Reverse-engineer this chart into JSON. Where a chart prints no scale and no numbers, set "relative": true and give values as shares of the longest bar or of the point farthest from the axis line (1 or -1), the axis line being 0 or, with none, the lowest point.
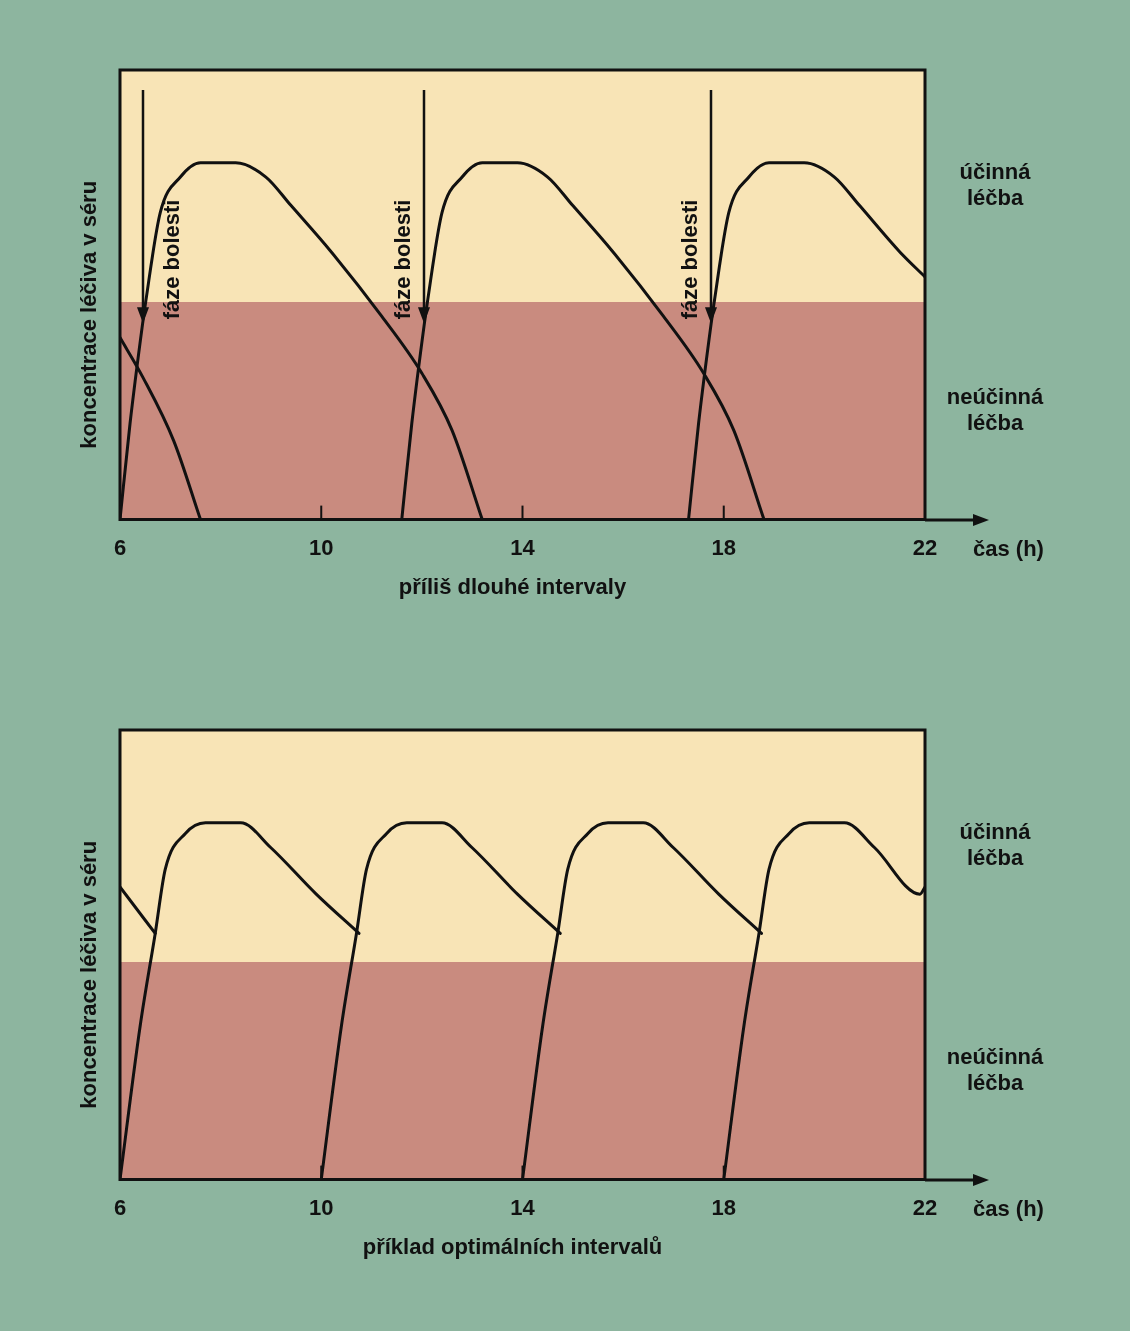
{
  "chart_data": [
    {
      "type": "line",
      "relative": true,
      "title": "příliš dlouhé intervaly",
      "xlabel": "čas (h)",
      "ylabel": "koncentrace léčiva v séru",
      "xlim": [
        6,
        22
      ],
      "xticks": [
        6,
        10,
        14,
        18,
        22
      ],
      "series": [
        {
          "color": "#111111",
          "x": [
            6,
            6.45,
            7.07,
            7.6
          ],
          "values": [
            0.51,
            0.4,
            0.22,
            0
          ]
        },
        {
          "color": "#111111",
          "x": [
            6,
            6.2,
            6.45,
            6.5,
            6.8,
            7.2,
            7.6,
            8.3,
            8.9,
            9.4,
            10.2,
            11.2,
            12,
            12.6,
            13.2
          ],
          "values": [
            0,
            0.27,
            0.55,
            0.6,
            0.86,
            0.96,
            1,
            1,
            0.96,
            0.88,
            0.75,
            0.57,
            0.41,
            0.25,
            0
          ]
        },
        {
          "color": "#111111",
          "x": [
            11.6,
            11.8,
            12.05,
            12.1,
            12.4,
            12.8,
            13.2,
            13.9,
            14.5,
            15,
            15.8,
            16.8,
            17.6,
            18.2,
            18.8
          ],
          "values": [
            0,
            0.27,
            0.55,
            0.6,
            0.86,
            0.96,
            1,
            1,
            0.96,
            0.88,
            0.75,
            0.57,
            0.41,
            0.25,
            0
          ]
        },
        {
          "color": "#111111",
          "x": [
            17.3,
            17.5,
            17.75,
            17.8,
            18.1,
            18.5,
            18.9,
            19.6,
            20.2,
            20.7,
            21.5,
            22
          ],
          "values": [
            0,
            0.27,
            0.55,
            0.6,
            0.86,
            0.96,
            1,
            1,
            0.96,
            0.88,
            0.75,
            0.68
          ]
        }
      ],
      "bands": [
        {
          "axis": "y",
          "from": 0,
          "to": 0.61,
          "label": "neúčinná léčba",
          "color": "#c98b7f"
        },
        {
          "axis": "y",
          "from": 0.61,
          "to": 1.26,
          "label": "účinná léčba",
          "color": "#f8e4b6"
        }
      ],
      "annotations": [
        {
          "text": "fáze bolesti",
          "x": 6.45,
          "y": 0.55
        },
        {
          "text": "fáze bolesti",
          "x": 12.05,
          "y": 0.55
        },
        {
          "text": "fáze bolesti",
          "x": 17.75,
          "y": 0.55
        }
      ]
    },
    {
      "type": "line",
      "relative": true,
      "title": "příklad optimálních intervalů",
      "xlabel": "čas (h)",
      "ylabel": "koncentrace léčiva v séru",
      "xlim": [
        6,
        22
      ],
      "xticks": [
        6,
        10,
        14,
        18,
        22
      ],
      "series": [
        {
          "color": "#111111",
          "x": [
            6,
            6.7
          ],
          "values": [
            0.82,
            0.69
          ]
        },
        {
          "color": "#111111",
          "x": [
            6,
            6.4,
            6.7,
            6.9,
            7.3,
            7.7,
            8.4,
            9,
            9.9,
            10.75
          ],
          "values": [
            0,
            0.43,
            0.69,
            0.87,
            0.97,
            1,
            1,
            0.93,
            0.8,
            0.69
          ]
        },
        {
          "color": "#111111",
          "x": [
            10,
            10.4,
            10.7,
            10.9,
            11.3,
            11.7,
            12.4,
            13,
            13.9,
            14.75
          ],
          "values": [
            0,
            0.43,
            0.69,
            0.87,
            0.97,
            1,
            1,
            0.93,
            0.8,
            0.69
          ]
        },
        {
          "color": "#111111",
          "x": [
            14,
            14.4,
            14.7,
            14.9,
            15.3,
            15.7,
            16.4,
            17,
            17.9,
            18.75
          ],
          "values": [
            0,
            0.43,
            0.69,
            0.87,
            0.97,
            1,
            1,
            0.93,
            0.8,
            0.69
          ]
        },
        {
          "color": "#111111",
          "x": [
            18,
            18.4,
            18.7,
            18.9,
            19.3,
            19.7,
            20.4,
            21,
            21.9,
            22
          ],
          "values": [
            0,
            0.43,
            0.69,
            0.87,
            0.97,
            1,
            1,
            0.93,
            0.8,
            0.82
          ]
        }
      ],
      "bands": [
        {
          "axis": "y",
          "from": 0,
          "to": 0.61,
          "label": "neúčinná léčba",
          "color": "#c98b7f"
        },
        {
          "axis": "y",
          "from": 0.61,
          "to": 1.26,
          "label": "účinná léčba",
          "color": "#f8e4b6"
        }
      ]
    }
  ]
}
